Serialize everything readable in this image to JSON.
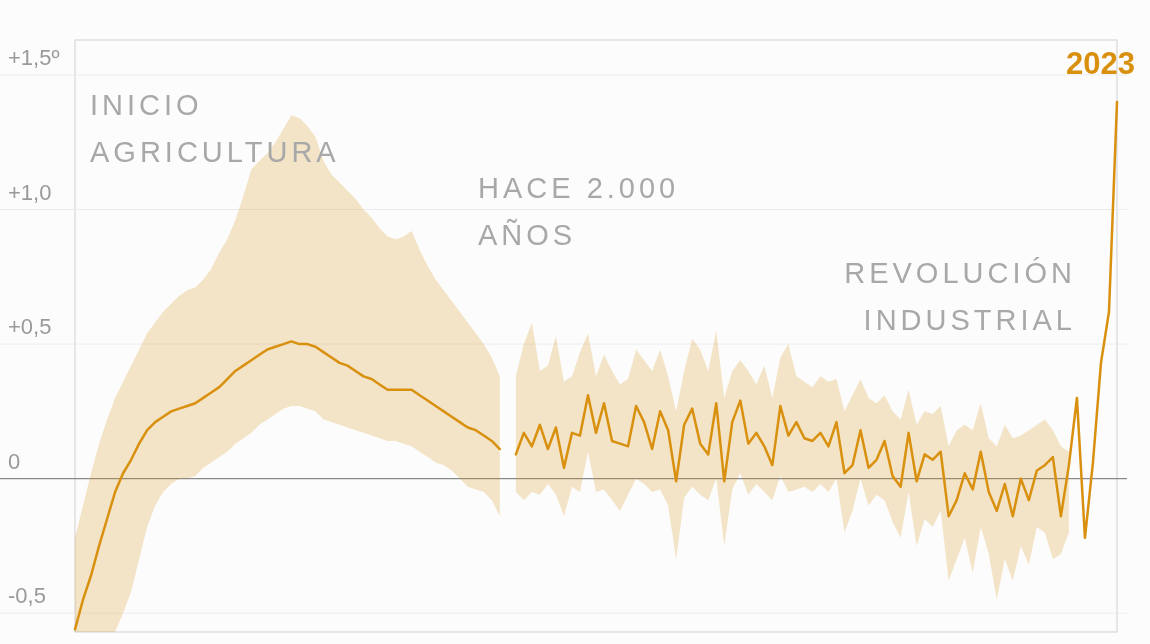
{
  "chart_data": {
    "type": "line",
    "ylim": [
      -0.57,
      1.63
    ],
    "yticks": [
      {
        "value": 1.5,
        "label": "+1,5º"
      },
      {
        "value": 1,
        "label": "+1,0"
      },
      {
        "value": 0.5,
        "label": "+0,5"
      },
      0,
      {
        "value": -0.5,
        "label": "-0,5"
      }
    ],
    "grid": "y",
    "tick_labels": "y",
    "annotations": [
      "INICIO AGRICULTURA",
      "HACE 2.000 AÑOS",
      "REVOLUCIÓN INDUSTRIAL",
      "2023"
    ],
    "categories": [
      null,
      null,
      null,
      null,
      null,
      null,
      null,
      null,
      null,
      null,
      null,
      null,
      null,
      null,
      null,
      null,
      null,
      null,
      null,
      null,
      null,
      null,
      null,
      null,
      null,
      null,
      null,
      null,
      null,
      null,
      null,
      null,
      null,
      null,
      null,
      null,
      null,
      null,
      null,
      null,
      null,
      null,
      null,
      null,
      null,
      null,
      null,
      null,
      null,
      null,
      null,
      null,
      null,
      null,
      null,
      null,
      null,
      null,
      null,
      null,
      null,
      null,
      null,
      null,
      null,
      null,
      null,
      null,
      null,
      null,
      null,
      null,
      null,
      null,
      null,
      null,
      null,
      null,
      null,
      null,
      null,
      null,
      null,
      null,
      null,
      null,
      null,
      null,
      null,
      null,
      null,
      null,
      null,
      null,
      null,
      null,
      null,
      null,
      null,
      null,
      null,
      null,
      null,
      null,
      null,
      null,
      null,
      null,
      null,
      null,
      null,
      null,
      null,
      null,
      null,
      null,
      null,
      null,
      null,
      null,
      null,
      null,
      null,
      null,
      null,
      null,
      null,
      null,
      null,
      null,
      null
    ],
    "series": [
      {
        "color": "#d8900e",
        "values": [
          -0.56,
          -0.45,
          -0.36,
          -0.25,
          -0.15,
          -0.05,
          0.02,
          0.07,
          0.13,
          0.18,
          0.21,
          0.23,
          0.25,
          0.26,
          0.27,
          0.28,
          0.3,
          0.32,
          0.34,
          0.37,
          0.4,
          0.42,
          0.44,
          0.46,
          0.48,
          0.49,
          0.5,
          0.51,
          0.5,
          0.5,
          0.49,
          0.47,
          0.45,
          0.43,
          0.42,
          0.4,
          0.38,
          0.37,
          0.35,
          0.33,
          0.33,
          0.33,
          0.33,
          0.31,
          0.29,
          0.27,
          0.25,
          0.23,
          0.21,
          0.19,
          0.18,
          0.16,
          0.14,
          0.11,
          null,
          null,
          null,
          null,
          null,
          null,
          null,
          null,
          null,
          null,
          null,
          null,
          null,
          null,
          null,
          null,
          null,
          null,
          null,
          null,
          null,
          null,
          null,
          null,
          null,
          null,
          null,
          null,
          null,
          null,
          null,
          null,
          null,
          null,
          null,
          null,
          null,
          null,
          null,
          null,
          null,
          null,
          null,
          null,
          null,
          null,
          null,
          null,
          null,
          null,
          null,
          null,
          null,
          null,
          null,
          null,
          null,
          null,
          null,
          null,
          null,
          null,
          null,
          null,
          null,
          null,
          null,
          null,
          null,
          null,
          null,
          null,
          null,
          null,
          null,
          null,
          null
        ],
        "upper": [
          -0.22,
          -0.1,
          0.02,
          0.13,
          0.22,
          0.3,
          0.36,
          0.42,
          0.48,
          0.54,
          0.58,
          0.62,
          0.65,
          0.68,
          0.7,
          0.71,
          0.74,
          0.78,
          0.84,
          0.89,
          0.96,
          1.05,
          1.15,
          1.18,
          1.21,
          1.25,
          1.3,
          1.35,
          1.34,
          1.31,
          1.27,
          1.18,
          1.13,
          1.1,
          1.07,
          1.04,
          1.0,
          0.97,
          0.93,
          0.9,
          0.89,
          0.9,
          0.92,
          0.85,
          0.79,
          0.74,
          0.7,
          0.66,
          0.62,
          0.58,
          0.54,
          0.5,
          0.45,
          0.38,
          null,
          null,
          null,
          null,
          null,
          null,
          null,
          null,
          null,
          null,
          null,
          null,
          null,
          null,
          null,
          null,
          null,
          null,
          null,
          null,
          null,
          null,
          null,
          null,
          null,
          null,
          null,
          null,
          null,
          null,
          null,
          null,
          null,
          null,
          null,
          null,
          null,
          null,
          null,
          null,
          null,
          null,
          null,
          null,
          null,
          null,
          null,
          null,
          null,
          null,
          null,
          null,
          null,
          null,
          null,
          null,
          null,
          null,
          null,
          null,
          null,
          null,
          null,
          null,
          null,
          null,
          null,
          null,
          null,
          null,
          null,
          null,
          null,
          null,
          null,
          null,
          null
        ],
        "lower": [
          -0.57,
          -0.57,
          -0.57,
          -0.57,
          -0.57,
          -0.57,
          -0.5,
          -0.42,
          -0.3,
          -0.18,
          -0.1,
          -0.05,
          -0.02,
          0.0,
          0.0,
          0.01,
          0.04,
          0.06,
          0.08,
          0.1,
          0.13,
          0.15,
          0.17,
          0.2,
          0.22,
          0.24,
          0.26,
          0.27,
          0.27,
          0.26,
          0.25,
          0.22,
          0.21,
          0.2,
          0.19,
          0.18,
          0.17,
          0.16,
          0.15,
          0.14,
          0.14,
          0.13,
          0.12,
          0.1,
          0.08,
          0.06,
          0.05,
          0.03,
          0.0,
          -0.03,
          -0.04,
          -0.05,
          -0.08,
          -0.14,
          null,
          null,
          null,
          null,
          null,
          null,
          null,
          null,
          null,
          null,
          null,
          null,
          null,
          null,
          null,
          null,
          null,
          null,
          null,
          null,
          null,
          null,
          null,
          null,
          null,
          null,
          null,
          null,
          null,
          null,
          null,
          null,
          null,
          null,
          null,
          null,
          null,
          null,
          null,
          null,
          null,
          null,
          null,
          null,
          null,
          null,
          null,
          null,
          null,
          null,
          null,
          null,
          null,
          null,
          null,
          null,
          null,
          null,
          null,
          null,
          null,
          null,
          null,
          null,
          null,
          null,
          null,
          null,
          null,
          null,
          null,
          null,
          null,
          null,
          null,
          null,
          null
        ]
      },
      {
        "color": "#d8900e",
        "values": [
          null,
          null,
          null,
          null,
          null,
          null,
          null,
          null,
          null,
          null,
          null,
          null,
          null,
          null,
          null,
          null,
          null,
          null,
          null,
          null,
          null,
          null,
          null,
          null,
          null,
          null,
          null,
          null,
          null,
          null,
          null,
          null,
          null,
          null,
          null,
          null,
          null,
          null,
          null,
          null,
          null,
          null,
          null,
          null,
          null,
          null,
          null,
          null,
          null,
          null,
          null,
          null,
          null,
          null,
          null,
          0.09,
          0.17,
          0.12,
          0.2,
          0.11,
          0.19,
          0.04,
          0.17,
          0.16,
          0.31,
          0.17,
          0.28,
          0.14,
          0.13,
          0.12,
          0.27,
          0.21,
          0.11,
          0.25,
          0.18,
          -0.01,
          0.2,
          0.26,
          0.13,
          0.09,
          0.28,
          -0.01,
          0.21,
          0.29,
          0.13,
          0.17,
          0.12,
          0.05,
          0.27,
          0.16,
          0.21,
          0.15,
          0.14,
          0.17,
          0.12,
          0.21,
          0.02,
          0.05,
          0.18,
          0.04,
          0.07,
          0.14,
          0.01,
          -0.03,
          0.17,
          -0.01,
          0.09,
          0.07,
          0.1,
          -0.14,
          -0.08,
          0.02,
          -0.04,
          0.1,
          -0.05,
          -0.12,
          -0.02,
          -0.14,
          0.0,
          -0.08,
          0.03,
          0.05,
          0.08,
          -0.14,
          0.05,
          0.3,
          -0.22,
          0.06,
          0.43,
          0.62,
          1.4
        ],
        "upper": [
          null,
          null,
          null,
          null,
          null,
          null,
          null,
          null,
          null,
          null,
          null,
          null,
          null,
          null,
          null,
          null,
          null,
          null,
          null,
          null,
          null,
          null,
          null,
          null,
          null,
          null,
          null,
          null,
          null,
          null,
          null,
          null,
          null,
          null,
          null,
          null,
          null,
          null,
          null,
          null,
          null,
          null,
          null,
          null,
          null,
          null,
          null,
          null,
          null,
          null,
          null,
          null,
          null,
          null,
          null,
          0.38,
          0.5,
          0.58,
          0.4,
          0.42,
          0.53,
          0.36,
          0.38,
          0.47,
          0.54,
          0.38,
          0.46,
          0.4,
          0.35,
          0.37,
          0.48,
          0.44,
          0.4,
          0.48,
          0.38,
          0.25,
          0.4,
          0.52,
          0.48,
          0.4,
          0.55,
          0.3,
          0.4,
          0.44,
          0.4,
          0.35,
          0.42,
          0.3,
          0.45,
          0.5,
          0.38,
          0.36,
          0.34,
          0.38,
          0.36,
          0.37,
          0.25,
          0.31,
          0.37,
          0.3,
          0.28,
          0.31,
          0.25,
          0.22,
          0.33,
          0.2,
          0.25,
          0.24,
          0.27,
          0.12,
          0.18,
          0.2,
          0.18,
          0.28,
          0.15,
          0.12,
          0.2,
          0.15,
          0.16,
          0.18,
          0.2,
          0.22,
          0.18,
          0.12,
          0.1,
          null,
          null,
          null,
          null,
          null,
          null
        ],
        "lower": [
          null,
          null,
          null,
          null,
          null,
          null,
          null,
          null,
          null,
          null,
          null,
          null,
          null,
          null,
          null,
          null,
          null,
          null,
          null,
          null,
          null,
          null,
          null,
          null,
          null,
          null,
          null,
          null,
          null,
          null,
          null,
          null,
          null,
          null,
          null,
          null,
          null,
          null,
          null,
          null,
          null,
          null,
          null,
          null,
          null,
          null,
          null,
          null,
          null,
          null,
          null,
          null,
          null,
          null,
          null,
          -0.05,
          -0.08,
          -0.05,
          -0.06,
          -0.02,
          -0.06,
          -0.14,
          -0.03,
          -0.05,
          0.1,
          -0.05,
          -0.04,
          -0.08,
          -0.12,
          -0.06,
          0.0,
          -0.02,
          -0.05,
          -0.04,
          -0.1,
          -0.3,
          -0.07,
          -0.03,
          -0.06,
          -0.08,
          0.0,
          -0.25,
          -0.04,
          0.02,
          -0.06,
          -0.02,
          -0.05,
          -0.08,
          0.01,
          -0.05,
          -0.04,
          -0.03,
          -0.05,
          -0.02,
          -0.05,
          0.0,
          -0.2,
          -0.12,
          0.0,
          -0.1,
          -0.06,
          -0.08,
          -0.16,
          -0.22,
          -0.05,
          -0.25,
          -0.15,
          -0.18,
          -0.12,
          -0.38,
          -0.3,
          -0.22,
          -0.35,
          -0.18,
          -0.28,
          -0.45,
          -0.3,
          -0.38,
          -0.25,
          -0.32,
          -0.18,
          -0.2,
          -0.3,
          -0.28,
          -0.2,
          null,
          null,
          null,
          null,
          null,
          null
        ]
      }
    ]
  }
}
